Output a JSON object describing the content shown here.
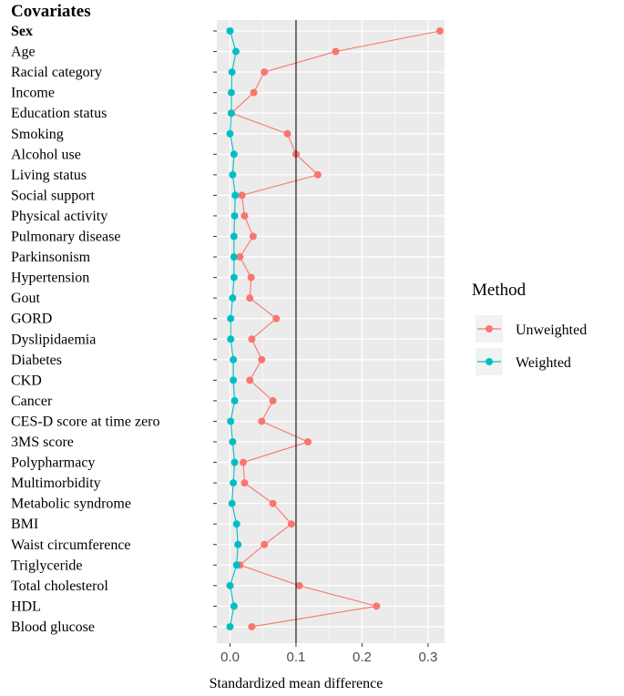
{
  "chart_data": {
    "type": "line",
    "orientation": "horizontal-dot-plot",
    "heading": "Covariates",
    "xlabel": "Standardized mean difference",
    "xlim": [
      -0.02,
      0.325
    ],
    "xticks": [
      0.0,
      0.1,
      0.2,
      0.3
    ],
    "xtick_labels": [
      "0.0",
      "0.1",
      "0.2",
      "0.3"
    ],
    "reference_line": 0.1,
    "grid": true,
    "categories": [
      "Sex",
      "Age",
      "Racial category",
      "Income",
      "Education status",
      "Smoking",
      "Alcohol use",
      "Living status",
      "Social support",
      "Physical activity",
      "Pulmonary disease",
      "Parkinsonism",
      "Hypertension",
      "Gout",
      "GORD",
      "Dyslipidaemia",
      "Diabetes",
      "CKD",
      "Cancer",
      "CES-D score at time zero",
      "3MS score",
      "Polypharmacy",
      "Multimorbidity",
      "Metabolic syndrome",
      "BMI",
      "Waist circumference",
      "Triglyceride",
      "Total cholesterol",
      "HDL",
      "Blood glucose"
    ],
    "legend": {
      "title": "Method",
      "position": "right"
    },
    "series": [
      {
        "name": "Unweighted",
        "color": "#f8766d",
        "values": [
          0.318,
          0.16,
          0.052,
          0.036,
          0.002,
          0.087,
          0.1,
          0.133,
          0.018,
          0.022,
          0.035,
          0.015,
          0.032,
          0.03,
          0.07,
          0.033,
          0.048,
          0.03,
          0.065,
          0.048,
          0.118,
          0.02,
          0.022,
          0.065,
          0.093,
          0.052,
          0.015,
          0.105,
          0.222,
          0.033
        ]
      },
      {
        "name": "Weighted",
        "color": "#00bfc4",
        "values": [
          0.0,
          0.009,
          0.003,
          0.002,
          0.002,
          0.0,
          0.006,
          0.004,
          0.008,
          0.007,
          0.006,
          0.006,
          0.006,
          0.004,
          0.001,
          0.001,
          0.005,
          0.005,
          0.007,
          0.001,
          0.004,
          0.007,
          0.005,
          0.003,
          0.01,
          0.012,
          0.01,
          0.0,
          0.006,
          0.0
        ]
      }
    ]
  }
}
